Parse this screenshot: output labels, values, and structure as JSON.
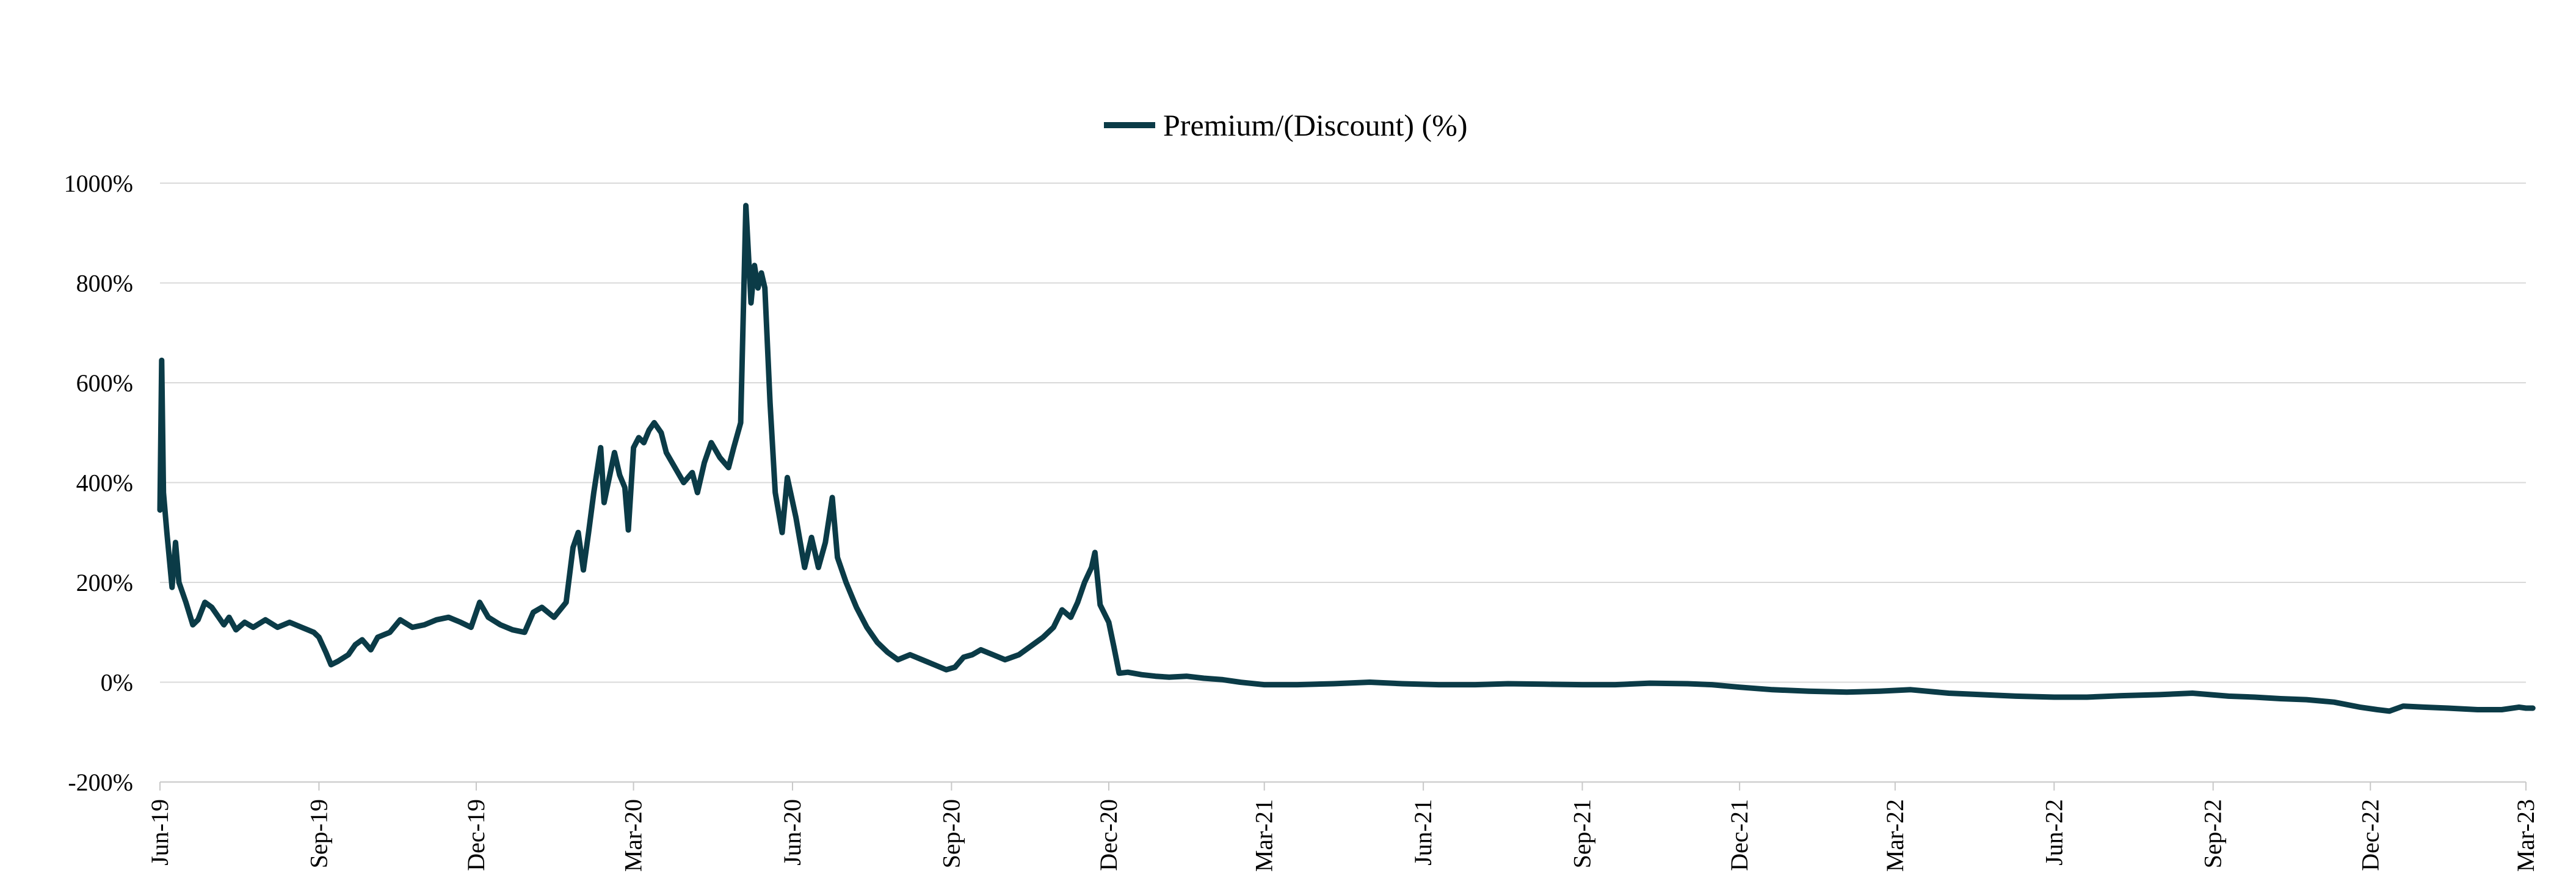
{
  "chart_data": {
    "type": "line",
    "title": "",
    "xlabel": "",
    "ylabel": "",
    "legend": {
      "position": "top-center",
      "entries": [
        "Premium/(Discount) (%)"
      ]
    },
    "grid": {
      "horizontal": true,
      "vertical": false
    },
    "ylim": [
      -200,
      1000
    ],
    "yticks": [
      -200,
      0,
      200,
      400,
      600,
      800,
      1000
    ],
    "ytick_labels": [
      "-200%",
      "0%",
      "200%",
      "400%",
      "600%",
      "800%",
      "1000%"
    ],
    "xlim": [
      "2019-06-01",
      "2023-03-01"
    ],
    "xtick_labels": [
      {
        "date": "2019-06-01",
        "label": "Jun-19"
      },
      {
        "date": "2019-09-01",
        "label": "Sep-19"
      },
      {
        "date": "2019-12-01",
        "label": "Dec-19"
      },
      {
        "date": "2020-03-01",
        "label": "Mar-20"
      },
      {
        "date": "2020-06-01",
        "label": "Jun-20"
      },
      {
        "date": "2020-09-01",
        "label": "Sep-20"
      },
      {
        "date": "2020-12-01",
        "label": "Dec-20"
      },
      {
        "date": "2021-03-01",
        "label": "Mar-21"
      },
      {
        "date": "2021-06-01",
        "label": "Jun-21"
      },
      {
        "date": "2021-09-01",
        "label": "Sep-21"
      },
      {
        "date": "2021-12-01",
        "label": "Dec-21"
      },
      {
        "date": "2022-03-01",
        "label": "Mar-22"
      },
      {
        "date": "2022-06-01",
        "label": "Jun-22"
      },
      {
        "date": "2022-09-01",
        "label": "Sep-22"
      },
      {
        "date": "2022-12-01",
        "label": "Dec-22"
      },
      {
        "date": "2023-03-01",
        "label": "Mar-23"
      }
    ],
    "series": [
      {
        "name": "Premium/(Discount) (%)",
        "color": "#0b3b47",
        "points": [
          [
            "2019-06-01",
            345
          ],
          [
            "2019-06-02",
            645
          ],
          [
            "2019-06-03",
            380
          ],
          [
            "2019-06-05",
            300
          ],
          [
            "2019-06-08",
            190
          ],
          [
            "2019-06-10",
            280
          ],
          [
            "2019-06-12",
            200
          ],
          [
            "2019-06-16",
            160
          ],
          [
            "2019-06-20",
            115
          ],
          [
            "2019-06-23",
            125
          ],
          [
            "2019-06-27",
            160
          ],
          [
            "2019-07-01",
            150
          ],
          [
            "2019-07-05",
            130
          ],
          [
            "2019-07-08",
            115
          ],
          [
            "2019-07-11",
            130
          ],
          [
            "2019-07-15",
            105
          ],
          [
            "2019-07-20",
            120
          ],
          [
            "2019-07-25",
            110
          ],
          [
            "2019-08-01",
            125
          ],
          [
            "2019-08-08",
            110
          ],
          [
            "2019-08-15",
            120
          ],
          [
            "2019-08-22",
            110
          ],
          [
            "2019-08-29",
            100
          ],
          [
            "2019-09-01",
            90
          ],
          [
            "2019-09-05",
            60
          ],
          [
            "2019-09-08",
            35
          ],
          [
            "2019-09-12",
            42
          ],
          [
            "2019-09-18",
            55
          ],
          [
            "2019-09-22",
            75
          ],
          [
            "2019-09-26",
            85
          ],
          [
            "2019-10-01",
            65
          ],
          [
            "2019-10-05",
            90
          ],
          [
            "2019-10-12",
            100
          ],
          [
            "2019-10-18",
            125
          ],
          [
            "2019-10-25",
            110
          ],
          [
            "2019-11-01",
            115
          ],
          [
            "2019-11-08",
            125
          ],
          [
            "2019-11-15",
            130
          ],
          [
            "2019-11-22",
            120
          ],
          [
            "2019-11-28",
            110
          ],
          [
            "2019-12-03",
            160
          ],
          [
            "2019-12-08",
            130
          ],
          [
            "2019-12-15",
            115
          ],
          [
            "2019-12-22",
            105
          ],
          [
            "2019-12-29",
            100
          ],
          [
            "2020-01-03",
            140
          ],
          [
            "2020-01-08",
            150
          ],
          [
            "2020-01-15",
            130
          ],
          [
            "2020-01-22",
            160
          ],
          [
            "2020-01-26",
            270
          ],
          [
            "2020-01-29",
            300
          ],
          [
            "2020-02-01",
            225
          ],
          [
            "2020-02-04",
            300
          ],
          [
            "2020-02-07",
            380
          ],
          [
            "2020-02-11",
            470
          ],
          [
            "2020-02-13",
            360
          ],
          [
            "2020-02-16",
            410
          ],
          [
            "2020-02-19",
            460
          ],
          [
            "2020-02-22",
            415
          ],
          [
            "2020-02-25",
            390
          ],
          [
            "2020-02-27",
            305
          ],
          [
            "2020-03-01",
            470
          ],
          [
            "2020-03-04",
            490
          ],
          [
            "2020-03-07",
            480
          ],
          [
            "2020-03-10",
            505
          ],
          [
            "2020-03-13",
            520
          ],
          [
            "2020-03-17",
            500
          ],
          [
            "2020-03-20",
            460
          ],
          [
            "2020-03-25",
            430
          ],
          [
            "2020-03-30",
            400
          ],
          [
            "2020-04-04",
            420
          ],
          [
            "2020-04-07",
            380
          ],
          [
            "2020-04-11",
            440
          ],
          [
            "2020-04-15",
            480
          ],
          [
            "2020-04-20",
            450
          ],
          [
            "2020-04-25",
            430
          ],
          [
            "2020-04-28",
            470
          ],
          [
            "2020-05-02",
            520
          ],
          [
            "2020-05-05",
            955
          ],
          [
            "2020-05-08",
            760
          ],
          [
            "2020-05-10",
            835
          ],
          [
            "2020-05-12",
            790
          ],
          [
            "2020-05-14",
            820
          ],
          [
            "2020-05-16",
            790
          ],
          [
            "2020-05-19",
            560
          ],
          [
            "2020-05-22",
            380
          ],
          [
            "2020-05-26",
            300
          ],
          [
            "2020-05-29",
            410
          ],
          [
            "2020-06-03",
            330
          ],
          [
            "2020-06-08",
            230
          ],
          [
            "2020-06-12",
            290
          ],
          [
            "2020-06-16",
            230
          ],
          [
            "2020-06-20",
            280
          ],
          [
            "2020-06-24",
            370
          ],
          [
            "2020-06-27",
            250
          ],
          [
            "2020-07-02",
            200
          ],
          [
            "2020-07-08",
            150
          ],
          [
            "2020-07-14",
            110
          ],
          [
            "2020-07-20",
            80
          ],
          [
            "2020-07-26",
            60
          ],
          [
            "2020-08-01",
            45
          ],
          [
            "2020-08-08",
            55
          ],
          [
            "2020-08-15",
            45
          ],
          [
            "2020-08-22",
            35
          ],
          [
            "2020-08-29",
            25
          ],
          [
            "2020-09-03",
            30
          ],
          [
            "2020-09-08",
            50
          ],
          [
            "2020-09-13",
            55
          ],
          [
            "2020-09-18",
            65
          ],
          [
            "2020-09-25",
            55
          ],
          [
            "2020-10-02",
            45
          ],
          [
            "2020-10-10",
            55
          ],
          [
            "2020-10-18",
            75
          ],
          [
            "2020-10-24",
            90
          ],
          [
            "2020-10-30",
            110
          ],
          [
            "2020-11-04",
            145
          ],
          [
            "2020-11-09",
            130
          ],
          [
            "2020-11-13",
            160
          ],
          [
            "2020-11-17",
            200
          ],
          [
            "2020-11-21",
            230
          ],
          [
            "2020-11-23",
            260
          ],
          [
            "2020-11-26",
            155
          ],
          [
            "2020-12-01",
            120
          ],
          [
            "2020-12-04",
            70
          ],
          [
            "2020-12-07",
            18
          ],
          [
            "2020-12-12",
            20
          ],
          [
            "2020-12-20",
            15
          ],
          [
            "2020-12-28",
            12
          ],
          [
            "2021-01-05",
            10
          ],
          [
            "2021-01-15",
            12
          ],
          [
            "2021-01-25",
            8
          ],
          [
            "2021-02-05",
            5
          ],
          [
            "2021-02-15",
            0
          ],
          [
            "2021-03-01",
            -5
          ],
          [
            "2021-03-20",
            -5
          ],
          [
            "2021-04-10",
            -3
          ],
          [
            "2021-05-01",
            0
          ],
          [
            "2021-05-20",
            -3
          ],
          [
            "2021-06-10",
            -5
          ],
          [
            "2021-07-01",
            -5
          ],
          [
            "2021-07-20",
            -3
          ],
          [
            "2021-08-10",
            -4
          ],
          [
            "2021-09-01",
            -5
          ],
          [
            "2021-09-20",
            -5
          ],
          [
            "2021-10-10",
            -2
          ],
          [
            "2021-11-01",
            -3
          ],
          [
            "2021-11-15",
            -5
          ],
          [
            "2021-12-01",
            -10
          ],
          [
            "2021-12-20",
            -15
          ],
          [
            "2022-01-10",
            -18
          ],
          [
            "2022-02-01",
            -20
          ],
          [
            "2022-02-20",
            -18
          ],
          [
            "2022-03-10",
            -15
          ],
          [
            "2022-04-01",
            -22
          ],
          [
            "2022-04-20",
            -25
          ],
          [
            "2022-05-10",
            -28
          ],
          [
            "2022-06-01",
            -30
          ],
          [
            "2022-06-20",
            -30
          ],
          [
            "2022-07-10",
            -27
          ],
          [
            "2022-08-01",
            -25
          ],
          [
            "2022-08-20",
            -22
          ],
          [
            "2022-09-10",
            -28
          ],
          [
            "2022-09-25",
            -30
          ],
          [
            "2022-10-10",
            -33
          ],
          [
            "2022-10-25",
            -35
          ],
          [
            "2022-11-10",
            -40
          ],
          [
            "2022-11-25",
            -50
          ],
          [
            "2022-12-05",
            -55
          ],
          [
            "2022-12-12",
            -58
          ],
          [
            "2022-12-20",
            -48
          ],
          [
            "2023-01-01",
            -50
          ],
          [
            "2023-01-15",
            -52
          ],
          [
            "2023-02-01",
            -55
          ],
          [
            "2023-02-15",
            -55
          ],
          [
            "2023-02-25",
            -50
          ],
          [
            "2023-03-01",
            -52
          ],
          [
            "2023-03-05",
            -52
          ]
        ]
      }
    ]
  }
}
